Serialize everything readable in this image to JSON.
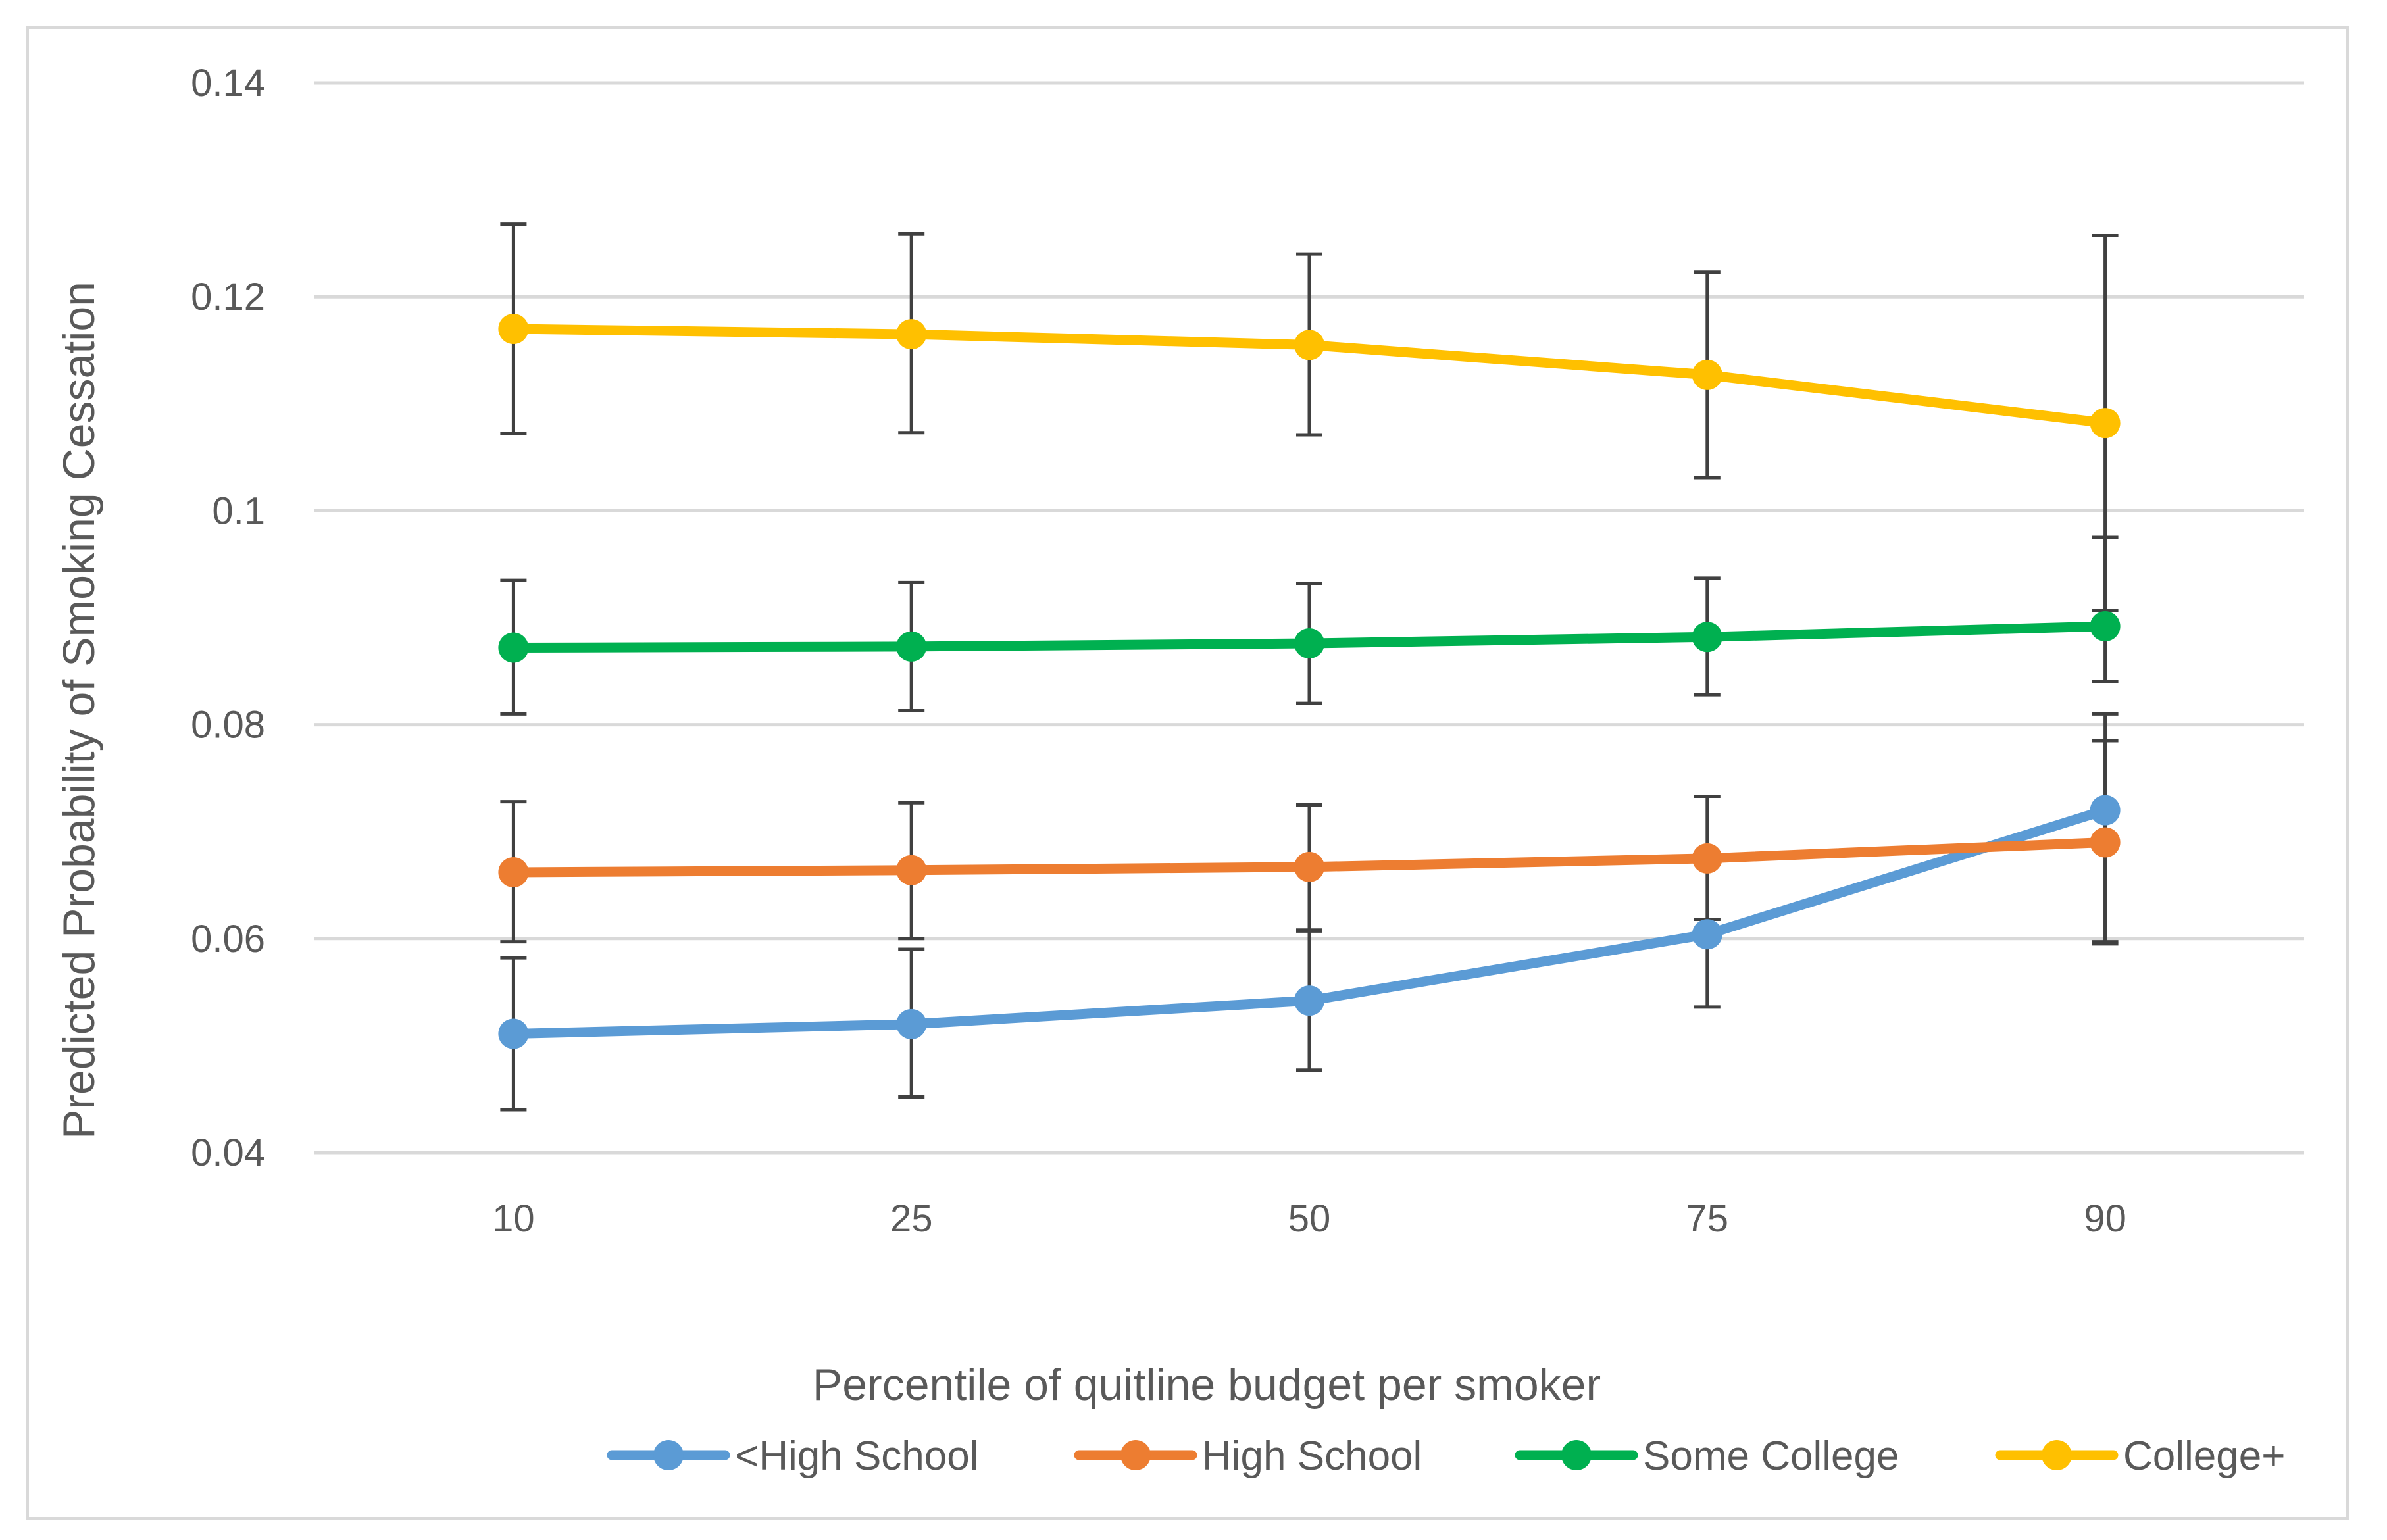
{
  "chart_data": {
    "type": "line",
    "title": "",
    "xlabel": "Percentile of quitline budget per smoker",
    "ylabel": "Predicted Probability of Smoking Cessation",
    "categories": [
      "10",
      "25",
      "50",
      "75",
      "90"
    ],
    "ylim": [
      0.04,
      0.14
    ],
    "yticks": [
      {
        "value": 0.04,
        "label": "0.04"
      },
      {
        "value": 0.06,
        "label": "0.06"
      },
      {
        "value": 0.08,
        "label": "0.08"
      },
      {
        "value": 0.1,
        "label": "0.1"
      },
      {
        "value": 0.12,
        "label": "0.12"
      },
      {
        "value": 0.14,
        "label": "0.14"
      }
    ],
    "grid": true,
    "legend_position": "bottom",
    "series": [
      {
        "name": "<High School",
        "color": "#5b9bd5",
        "values": [
          0.0511,
          0.052,
          0.0542,
          0.0604,
          0.072
        ],
        "lower": [
          0.044,
          0.0452,
          0.0477,
          0.0536,
          0.0595
        ],
        "upper": [
          0.0582,
          0.059,
          0.0607,
          0.0618,
          0.081
        ]
      },
      {
        "name": "High School",
        "color": "#ed7d31",
        "values": [
          0.0662,
          0.0664,
          0.0667,
          0.0675,
          0.069
        ],
        "lower": [
          0.0597,
          0.06,
          0.0608,
          0.0618,
          0.0597
        ],
        "upper": [
          0.0728,
          0.0727,
          0.0725,
          0.0733,
          0.0785
        ]
      },
      {
        "name": "Some College",
        "color": "#00b050",
        "values": [
          0.0872,
          0.0873,
          0.0876,
          0.0882,
          0.0892
        ],
        "lower": [
          0.081,
          0.0813,
          0.082,
          0.0828,
          0.084
        ],
        "upper": [
          0.0935,
          0.0933,
          0.0932,
          0.0937,
          0.0975
        ]
      },
      {
        "name": "College+",
        "color": "#ffc000",
        "values": [
          0.117,
          0.1165,
          0.1155,
          0.1127,
          0.1082
        ],
        "lower": [
          0.1072,
          0.1073,
          0.1071,
          0.1031,
          0.0907
        ],
        "upper": [
          0.1268,
          0.1259,
          0.124,
          0.1223,
          0.1257
        ]
      }
    ]
  }
}
